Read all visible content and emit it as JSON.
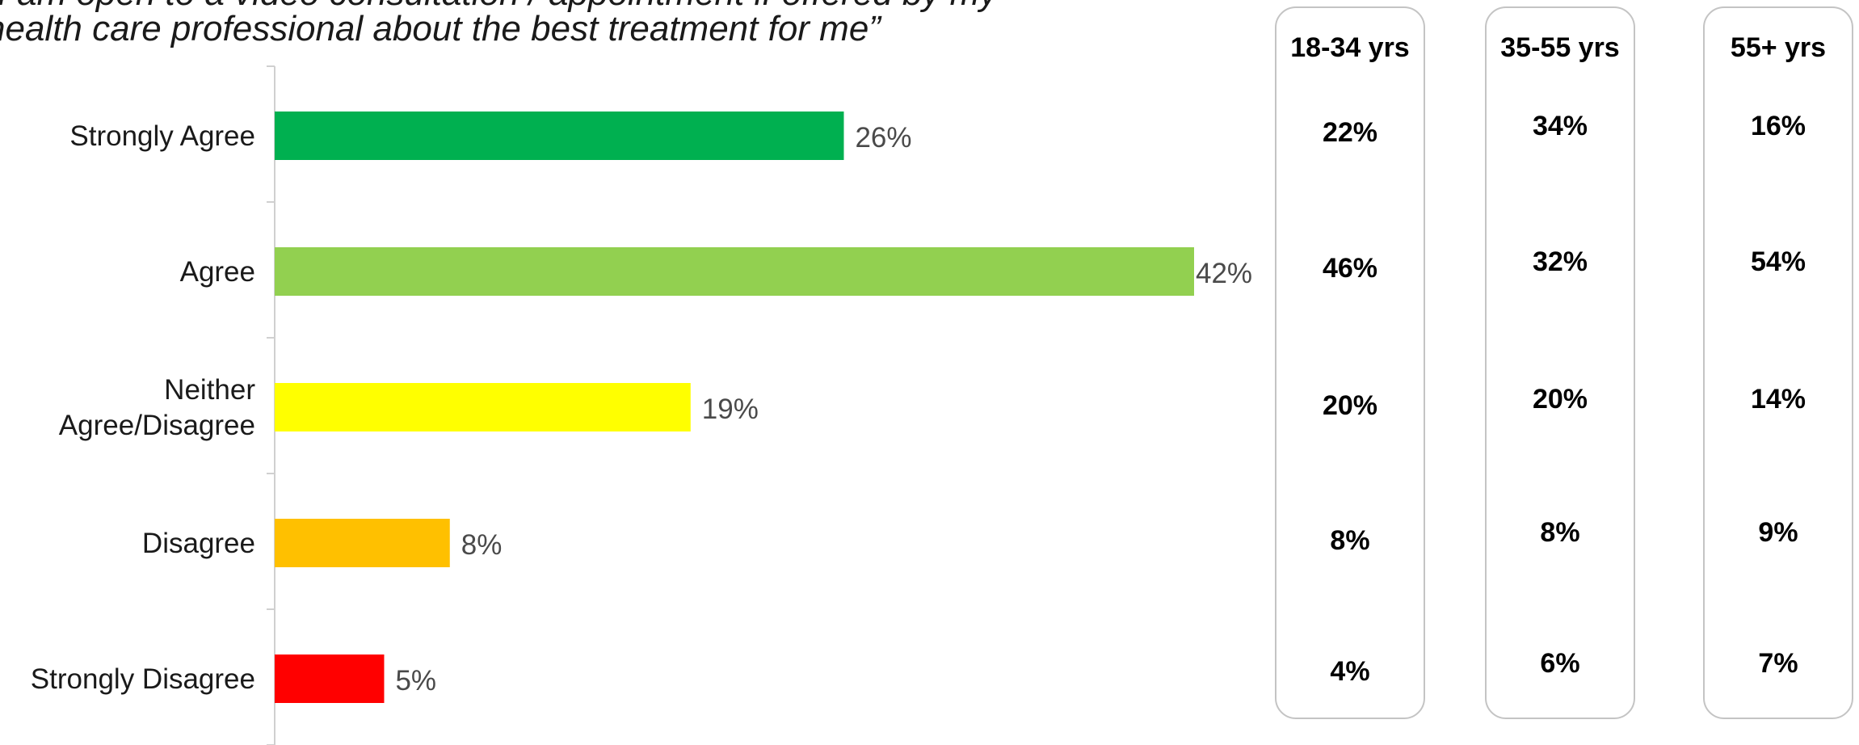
{
  "title": {
    "line1": "“I am open to a video consultation / appointment if offered by my",
    "line2": "health care professional about the best treatment for me”"
  },
  "chart_data": {
    "type": "bar",
    "orientation": "horizontal",
    "categories": [
      "Strongly Agree",
      "Agree",
      "Neither Agree/Disagree",
      "Disagree",
      "Strongly Disagree"
    ],
    "category_label_lines": [
      [
        "Strongly Agree"
      ],
      [
        "Agree"
      ],
      [
        "Neither",
        "Agree/Disagree"
      ],
      [
        "Disagree"
      ],
      [
        "Strongly Disagree"
      ]
    ],
    "values": [
      26,
      42,
      19,
      8,
      5
    ],
    "value_labels": [
      "26%",
      "42%",
      "19%",
      "8%",
      "5%"
    ],
    "colors": [
      "#00b050",
      "#92d050",
      "#ffff00",
      "#ffc000",
      "#ff0000"
    ],
    "xlim": [
      0,
      42
    ],
    "grid": false,
    "legend": "none"
  },
  "age_breakdown": [
    {
      "header": "18-34 yrs",
      "values": [
        "22%",
        "46%",
        "20%",
        "8%",
        "4%"
      ]
    },
    {
      "header": "35-55 yrs",
      "values": [
        "34%",
        "32%",
        "20%",
        "8%",
        "6%"
      ]
    },
    {
      "header": "55+ yrs",
      "values": [
        "16%",
        "54%",
        "14%",
        "9%",
        "7%"
      ]
    }
  ]
}
